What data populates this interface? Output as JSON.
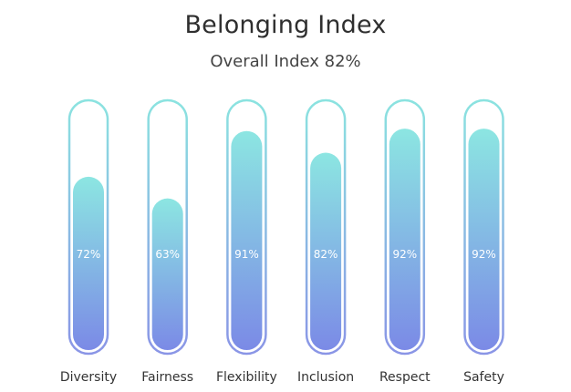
{
  "header": {
    "title": "Belonging Index",
    "subtitle": "Overall Index 82%"
  },
  "chart_data": {
    "type": "bar",
    "title": "Belonging Index",
    "subtitle": "Overall Index 82%",
    "categories": [
      "Diversity",
      "Fairness",
      "Flexibility",
      "Inclusion",
      "Respect",
      "Safety"
    ],
    "values": [
      72,
      63,
      91,
      82,
      92,
      92
    ],
    "value_labels": [
      "72%",
      "63%",
      "91%",
      "82%",
      "92%",
      "92%"
    ],
    "ylim": [
      0,
      100
    ],
    "xlabel": "",
    "ylabel": "",
    "grid": false,
    "legend": "none",
    "colors": {
      "gradient_top": "#8ce6e2",
      "gradient_bottom": "#7b8ae6",
      "tube_stroke_top": "#8be3e0",
      "tube_stroke_bottom": "#8a95e6",
      "value_label": "#ffffff",
      "category_label": "#333333"
    }
  }
}
